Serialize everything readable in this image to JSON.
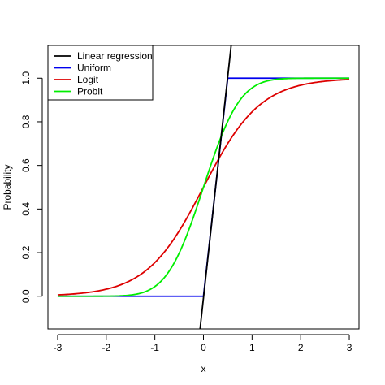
{
  "chart_data": {
    "type": "line",
    "title": "",
    "xlabel": "x",
    "ylabel": "Probability",
    "xlim": [
      -3.2,
      3.2
    ],
    "ylim": [
      -0.15,
      1.15
    ],
    "x_ticks": [
      -3,
      -2,
      -1,
      0,
      1,
      2,
      3
    ],
    "x_tick_labels": [
      "-3",
      "-2",
      "-1",
      "0",
      "1",
      "2",
      "3"
    ],
    "y_ticks": [
      0.0,
      0.2,
      0.4,
      0.6,
      0.8,
      1.0
    ],
    "y_tick_labels": [
      "0.0",
      "0.2",
      "0.4",
      "0.6",
      "0.8",
      "1.0"
    ],
    "grid": false,
    "legend_position": "top-left",
    "series": [
      {
        "name": "Linear regression",
        "color": "#000000",
        "x": [
          -0.07,
          0.57
        ],
        "y": [
          -0.15,
          1.15
        ]
      },
      {
        "name": "Uniform",
        "color": "#0000ee",
        "x": [
          -3,
          0,
          0.5,
          3
        ],
        "y": [
          0,
          0,
          1,
          1
        ]
      },
      {
        "name": "Logit",
        "color": "#dd0000",
        "x": [
          -3,
          -2.5,
          -2,
          -1.5,
          -1,
          -0.5,
          0,
          0.5,
          1,
          1.5,
          2,
          2.5,
          3
        ],
        "y": [
          0.004,
          0.011,
          0.028,
          0.069,
          0.159,
          0.31,
          0.5,
          0.69,
          0.841,
          0.931,
          0.972,
          0.989,
          0.996
        ]
      },
      {
        "name": "Probit",
        "color": "#00ee00",
        "x": [
          -3,
          -2,
          -1.5,
          -1,
          -0.75,
          -0.5,
          -0.25,
          0,
          0.25,
          0.5,
          0.75,
          1,
          1.5,
          2,
          3
        ],
        "y": [
          0.0,
          0.0,
          0.004,
          0.045,
          0.11,
          0.212,
          0.346,
          0.5,
          0.654,
          0.788,
          0.89,
          0.955,
          0.996,
          1.0,
          1.0
        ]
      }
    ]
  }
}
